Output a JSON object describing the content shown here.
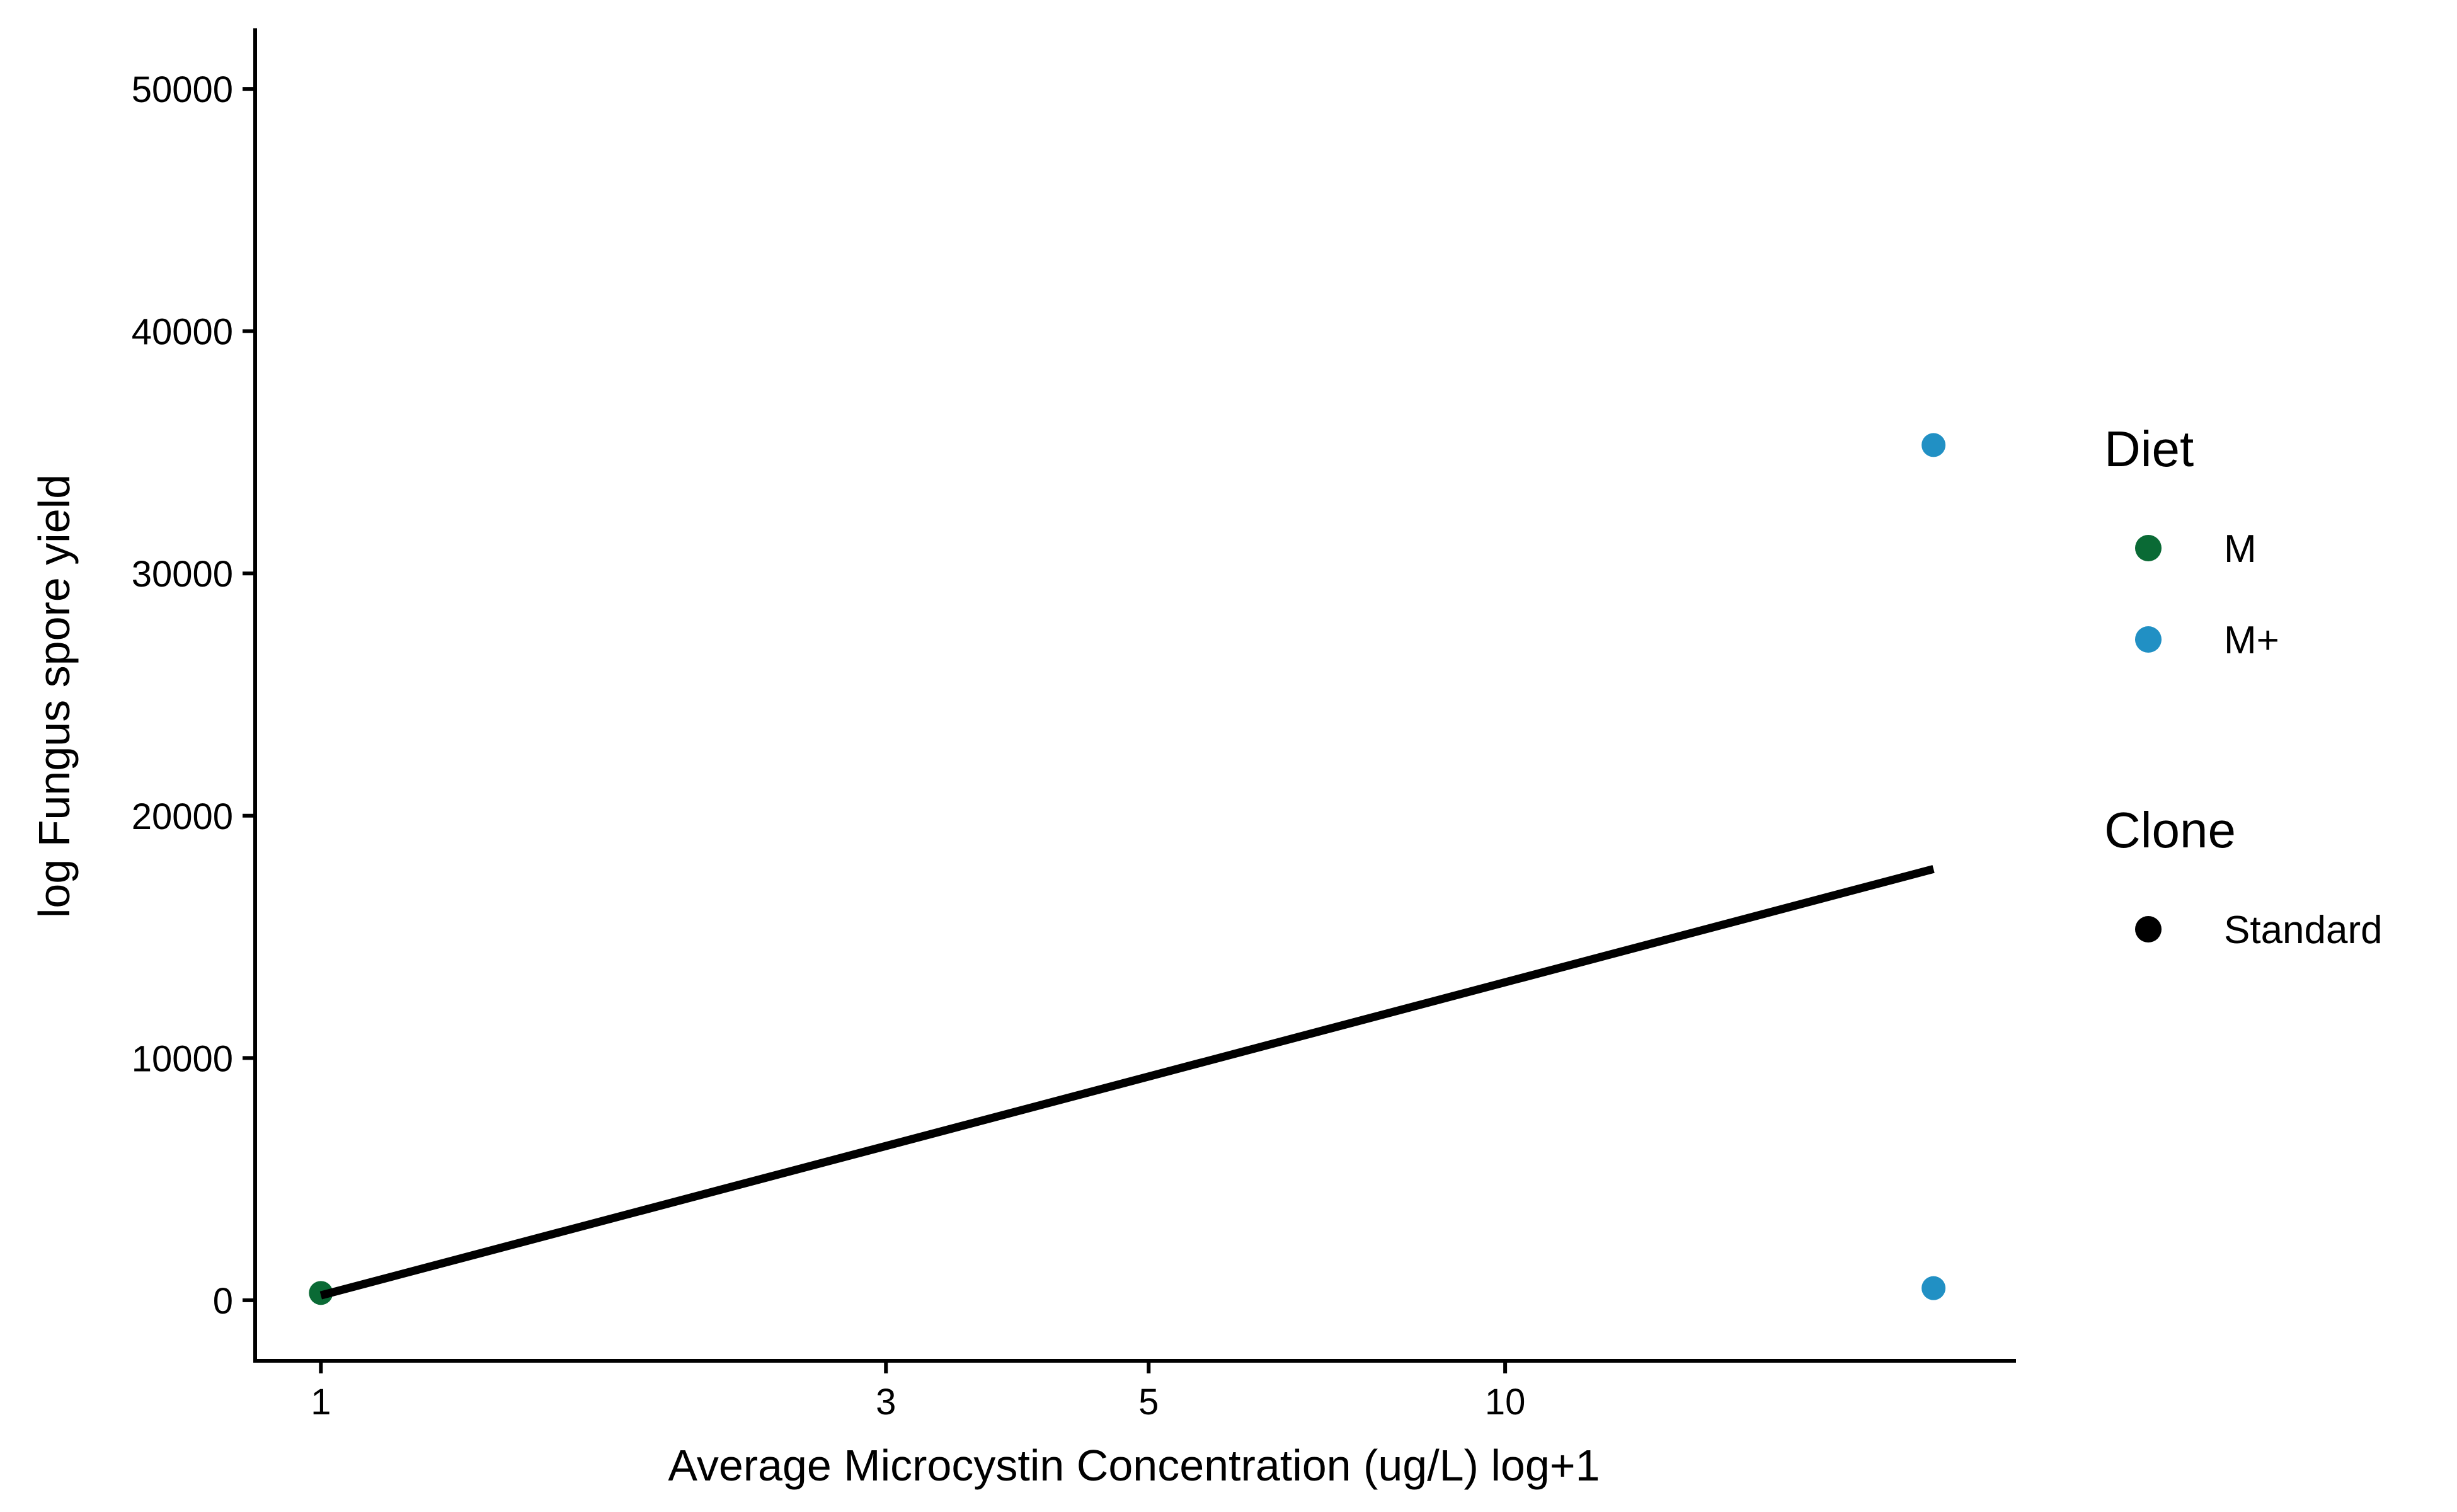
{
  "chart_data": {
    "type": "scatter",
    "xlabel": "Average Microcystin Concentration (ug/L) log+1",
    "ylabel": "log Fungus spore yield",
    "x_scale": "log",
    "xlim": [
      0.88,
      27
    ],
    "ylim": [
      -2500,
      52500
    ],
    "x_ticks": [
      1,
      3,
      5,
      10
    ],
    "x_tick_labels": [
      "1",
      "3",
      "5",
      "10"
    ],
    "y_ticks": [
      0,
      10000,
      20000,
      30000,
      40000,
      50000
    ],
    "y_tick_labels": [
      "0",
      "10000",
      "20000",
      "30000",
      "40000",
      "50000"
    ],
    "points": [
      {
        "x": 1,
        "y": 300,
        "diet": "M",
        "clone": "Standard"
      },
      {
        "x": 23,
        "y": 35300,
        "diet": "M+",
        "clone": "Standard"
      },
      {
        "x": 23,
        "y": 500,
        "diet": "M+",
        "clone": "Standard"
      }
    ],
    "trend_line": {
      "x": [
        1,
        23
      ],
      "y": [
        200,
        17800
      ],
      "color": "#000000"
    },
    "legend": {
      "placement": "right",
      "groups": [
        {
          "title": "Diet",
          "items": [
            {
              "label": "M",
              "color": "#0a6a35"
            },
            {
              "label": "M+",
              "color": "#2190c4"
            }
          ]
        },
        {
          "title": "Clone",
          "items": [
            {
              "label": "Standard",
              "color": "#000000"
            }
          ]
        }
      ]
    },
    "grid": false
  }
}
